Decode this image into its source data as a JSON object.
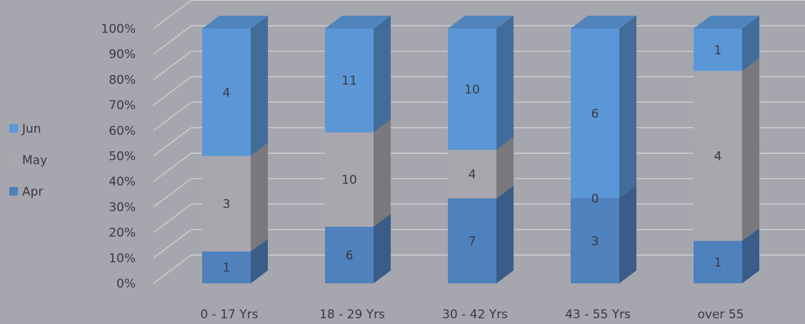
{
  "chart_data": {
    "type": "bar",
    "stacked": "percent",
    "three_d": true,
    "categories": [
      "0 - 17 Yrs",
      "18 - 29 Yrs",
      "30 - 42 Yrs",
      "43 - 55 Yrs",
      "over 55"
    ],
    "series": [
      {
        "name": "Apr",
        "values": [
          1,
          6,
          7,
          3,
          1
        ]
      },
      {
        "name": "May",
        "values": [
          3,
          10,
          4,
          0,
          4
        ]
      },
      {
        "name": "Jun",
        "values": [
          4,
          11,
          10,
          6,
          1
        ]
      }
    ],
    "title": "",
    "xlabel": "",
    "ylabel": "",
    "ylim": [
      0,
      100
    ],
    "yticks": [
      "0%",
      "10%",
      "20%",
      "30%",
      "40%",
      "50%",
      "60%",
      "70%",
      "80%",
      "90%",
      "100%"
    ],
    "grid": true,
    "legend": {
      "position": "left",
      "order": [
        "Jun",
        "May",
        "Apr"
      ]
    },
    "colors": {
      "Apr": "#4f81bd",
      "May": "#a9a7ae",
      "Jun": "#5b97d6",
      "background": "#a6a6ae",
      "grid": "#d4d4da"
    }
  }
}
